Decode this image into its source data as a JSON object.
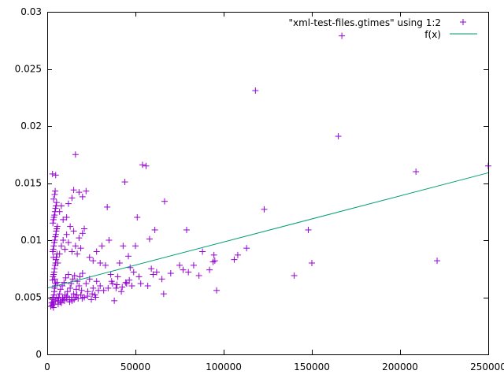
{
  "chart_data": {
    "type": "scatter",
    "title": "",
    "xlabel": "",
    "ylabel": "",
    "xlim": [
      0,
      250000
    ],
    "ylim": [
      0,
      0.03
    ],
    "grid": false,
    "legend_position": "top-right",
    "x_ticks": [
      {
        "value": 0,
        "label": "0"
      },
      {
        "value": 50000,
        "label": "50000"
      },
      {
        "value": 100000,
        "label": "100000"
      },
      {
        "value": 150000,
        "label": "150000"
      },
      {
        "value": 200000,
        "label": "200000"
      },
      {
        "value": 250000,
        "label": "250000"
      }
    ],
    "y_ticks": [
      {
        "value": 0,
        "label": "0"
      },
      {
        "value": 0.005,
        "label": "0.005"
      },
      {
        "value": 0.01,
        "label": "0.01"
      },
      {
        "value": 0.015,
        "label": "0.015"
      },
      {
        "value": 0.02,
        "label": "0.02"
      },
      {
        "value": 0.025,
        "label": "0.025"
      },
      {
        "value": 0.03,
        "label": "0.03"
      }
    ],
    "series": [
      {
        "name": "\"xml-test-files.gtimes\" using 1:2",
        "type": "scatter",
        "marker": "plus",
        "color": "#9400d3",
        "points": [
          [
            2000,
            0.0042
          ],
          [
            2500,
            0.0045
          ],
          [
            3000,
            0.0048
          ],
          [
            3200,
            0.005
          ],
          [
            3500,
            0.0041
          ],
          [
            3800,
            0.0052
          ],
          [
            4000,
            0.0055
          ],
          [
            4200,
            0.0058
          ],
          [
            4500,
            0.006
          ],
          [
            4800,
            0.0062
          ],
          [
            3000,
            0.0065
          ],
          [
            3300,
            0.0068
          ],
          [
            3600,
            0.007
          ],
          [
            3900,
            0.0072
          ],
          [
            4100,
            0.0075
          ],
          [
            4400,
            0.0078
          ],
          [
            4700,
            0.008
          ],
          [
            5000,
            0.0083
          ],
          [
            5200,
            0.0085
          ],
          [
            5500,
            0.0088
          ],
          [
            3100,
            0.009
          ],
          [
            3400,
            0.0092
          ],
          [
            3700,
            0.0095
          ],
          [
            4000,
            0.0098
          ],
          [
            4300,
            0.01
          ],
          [
            4600,
            0.0103
          ],
          [
            4900,
            0.0105
          ],
          [
            5100,
            0.0108
          ],
          [
            5400,
            0.011
          ],
          [
            5700,
            0.0112
          ],
          [
            3200,
            0.0115
          ],
          [
            3500,
            0.0118
          ],
          [
            3800,
            0.012
          ],
          [
            4100,
            0.0122
          ],
          [
            4400,
            0.0125
          ],
          [
            4700,
            0.0128
          ],
          [
            5000,
            0.013
          ],
          [
            5300,
            0.0133
          ],
          [
            3600,
            0.0136
          ],
          [
            4200,
            0.014
          ],
          [
            4500,
            0.0143
          ],
          [
            3000,
            0.0158
          ],
          [
            4800,
            0.0157
          ],
          [
            3500,
            0.0085
          ],
          [
            4200,
            0.0066
          ],
          [
            5600,
            0.0063
          ],
          [
            6000,
            0.0047
          ],
          [
            6500,
            0.005
          ],
          [
            7000,
            0.0053
          ],
          [
            7500,
            0.0057
          ],
          [
            8000,
            0.0045
          ],
          [
            8500,
            0.006
          ],
          [
            9000,
            0.0048
          ],
          [
            9500,
            0.0063
          ],
          [
            10000,
            0.0052
          ],
          [
            10500,
            0.0067
          ],
          [
            11000,
            0.005
          ],
          [
            11500,
            0.0055
          ],
          [
            12000,
            0.007
          ],
          [
            12500,
            0.0048
          ],
          [
            13000,
            0.0058
          ],
          [
            13500,
            0.0062
          ],
          [
            14000,
            0.0047
          ],
          [
            14500,
            0.0066
          ],
          [
            15000,
            0.0053
          ],
          [
            15500,
            0.0069
          ],
          [
            16000,
            0.005
          ],
          [
            16500,
            0.0057
          ],
          [
            17000,
            0.0064
          ],
          [
            17500,
            0.0049
          ],
          [
            18000,
            0.006
          ],
          [
            18500,
            0.0068
          ],
          [
            19000,
            0.0052
          ],
          [
            19500,
            0.0056
          ],
          [
            20000,
            0.0071
          ],
          [
            21000,
            0.005
          ],
          [
            22000,
            0.0062
          ],
          [
            23000,
            0.0055
          ],
          [
            24000,
            0.0066
          ],
          [
            25000,
            0.0048
          ],
          [
            26000,
            0.0058
          ],
          [
            27000,
            0.0052
          ],
          [
            28000,
            0.0064
          ],
          [
            29000,
            0.0056
          ],
          [
            30000,
            0.006
          ],
          [
            6000,
            0.008
          ],
          [
            7000,
            0.0088
          ],
          [
            8000,
            0.0095
          ],
          [
            9000,
            0.01
          ],
          [
            10000,
            0.0092
          ],
          [
            11000,
            0.0105
          ],
          [
            12000,
            0.0098
          ],
          [
            13000,
            0.0112
          ],
          [
            14000,
            0.009
          ],
          [
            15000,
            0.0108
          ],
          [
            16000,
            0.0095
          ],
          [
            17000,
            0.0088
          ],
          [
            18000,
            0.0102
          ],
          [
            19000,
            0.0093
          ],
          [
            20000,
            0.0106
          ],
          [
            7000,
            0.0125
          ],
          [
            8000,
            0.013
          ],
          [
            9000,
            0.0118
          ],
          [
            11000,
            0.012
          ],
          [
            12000,
            0.0132
          ],
          [
            14000,
            0.0137
          ],
          [
            15000,
            0.0144
          ],
          [
            16000,
            0.0175
          ],
          [
            18000,
            0.0142
          ],
          [
            20000,
            0.0138
          ],
          [
            22000,
            0.0143
          ],
          [
            21000,
            0.011
          ],
          [
            24000,
            0.0085
          ],
          [
            26000,
            0.0082
          ],
          [
            28000,
            0.009
          ],
          [
            30000,
            0.008
          ],
          [
            31000,
            0.0095
          ],
          [
            33000,
            0.0078
          ],
          [
            34000,
            0.0129
          ],
          [
            35000,
            0.01
          ],
          [
            36000,
            0.007
          ],
          [
            37000,
            0.0062
          ],
          [
            38000,
            0.0047
          ],
          [
            39000,
            0.0058
          ],
          [
            40000,
            0.0068
          ],
          [
            41000,
            0.008
          ],
          [
            42000,
            0.0055
          ],
          [
            43000,
            0.0095
          ],
          [
            44000,
            0.0151
          ],
          [
            45000,
            0.0062
          ],
          [
            46000,
            0.0086
          ],
          [
            47000,
            0.0076
          ],
          [
            48000,
            0.006
          ],
          [
            49000,
            0.0072
          ],
          [
            50000,
            0.0095
          ],
          [
            51000,
            0.012
          ],
          [
            52000,
            0.0068
          ],
          [
            53000,
            0.0062
          ],
          [
            54000,
            0.0166
          ],
          [
            56000,
            0.0165
          ],
          [
            57000,
            0.006
          ],
          [
            58000,
            0.0101
          ],
          [
            59000,
            0.0075
          ],
          [
            60000,
            0.007
          ],
          [
            61000,
            0.0109
          ],
          [
            62000,
            0.0072
          ],
          [
            65000,
            0.0066
          ],
          [
            66000,
            0.0053
          ],
          [
            66500,
            0.0134
          ],
          [
            70000,
            0.0071
          ],
          [
            75000,
            0.0078
          ],
          [
            77000,
            0.0074
          ],
          [
            79000,
            0.0109
          ],
          [
            80000,
            0.0072
          ],
          [
            83000,
            0.0078
          ],
          [
            86000,
            0.0069
          ],
          [
            88000,
            0.009
          ],
          [
            92000,
            0.0074
          ],
          [
            94000,
            0.0081
          ],
          [
            94500,
            0.0087
          ],
          [
            95000,
            0.0082
          ],
          [
            96000,
            0.0056
          ],
          [
            106000,
            0.0083
          ],
          [
            108000,
            0.0087
          ],
          [
            113000,
            0.0093
          ],
          [
            118000,
            0.0231
          ],
          [
            123000,
            0.0127
          ],
          [
            140000,
            0.0069
          ],
          [
            148000,
            0.0109
          ],
          [
            150000,
            0.008
          ],
          [
            165000,
            0.0191
          ],
          [
            167000,
            0.0279
          ],
          [
            209000,
            0.016
          ],
          [
            221000,
            0.0082
          ],
          [
            250000,
            0.0165
          ],
          [
            2800,
            0.0043
          ],
          [
            3300,
            0.0046
          ],
          [
            3900,
            0.0044
          ],
          [
            4600,
            0.0047
          ],
          [
            5300,
            0.0049
          ],
          [
            6200,
            0.0044
          ],
          [
            7300,
            0.0046
          ],
          [
            8700,
            0.0049
          ],
          [
            9800,
            0.0047
          ],
          [
            11200,
            0.0051
          ],
          [
            12700,
            0.0046
          ],
          [
            13800,
            0.005
          ],
          [
            15200,
            0.0048
          ],
          [
            16800,
            0.0052
          ],
          [
            19800,
            0.0049
          ],
          [
            22800,
            0.0051
          ],
          [
            25500,
            0.0053
          ],
          [
            27500,
            0.005
          ],
          [
            32000,
            0.0056
          ],
          [
            34500,
            0.0058
          ],
          [
            36500,
            0.0064
          ],
          [
            39500,
            0.0061
          ],
          [
            42500,
            0.0059
          ],
          [
            44500,
            0.0063
          ],
          [
            46500,
            0.0065
          ]
        ]
      },
      {
        "name": "f(x)",
        "type": "line",
        "color": "#009e73",
        "x": [
          0,
          250000
        ],
        "y": [
          0.0058,
          0.0159
        ]
      }
    ]
  }
}
